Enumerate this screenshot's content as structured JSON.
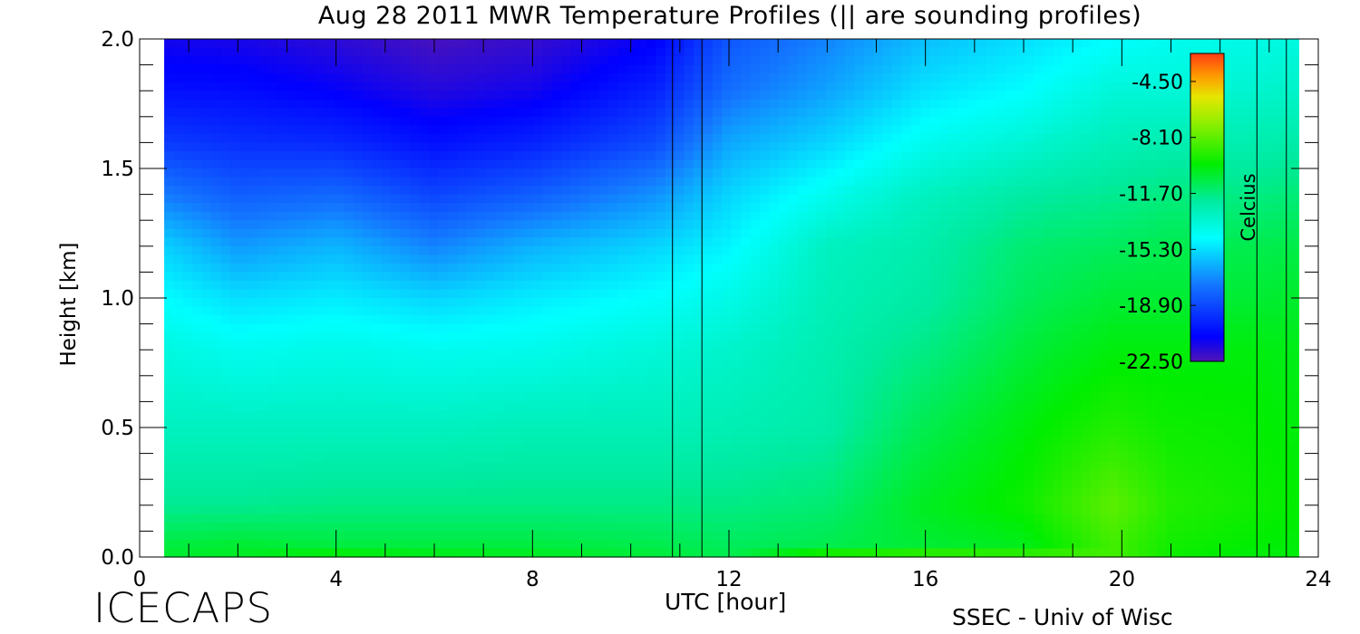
{
  "chart_data": {
    "type": "heatmap",
    "title": "Aug 28 2011 MWR Temperature Profiles (|| are sounding profiles)",
    "xlabel": "UTC [hour]",
    "ylabel": "Height [km]",
    "xlim": [
      0,
      24
    ],
    "ylim": [
      0,
      2
    ],
    "xticks": [
      "0",
      "4",
      "8",
      "12",
      "16",
      "20",
      "24"
    ],
    "yticks": [
      "0.0",
      "0.5",
      "1.0",
      "1.5",
      "2.0"
    ],
    "data_x_range": [
      0.5,
      23.6
    ],
    "sounding_times": [
      10.85,
      11.45,
      22.75,
      23.35
    ],
    "colorbar": {
      "unit": "Celcius",
      "range": [
        -22.5,
        -2.7
      ],
      "tick_labels": [
        "-4.50",
        "-8.10",
        "-11.70",
        "-15.30",
        "-18.90",
        "-22.50"
      ],
      "tick_values": [
        -4.5,
        -8.1,
        -11.7,
        -15.3,
        -18.9,
        -22.5
      ]
    },
    "temperature_profiles": {
      "heights_km": [
        0.0,
        0.05,
        0.2,
        0.5,
        0.8,
        1.0,
        1.2,
        1.4,
        1.6,
        1.8,
        2.0
      ],
      "times_hour": [
        0.5,
        2,
        4,
        6,
        8,
        10.5,
        12,
        14,
        16,
        18,
        19.8,
        21,
        22.5,
        23.6
      ],
      "values": [
        [
          -10.5,
          -10.8,
          -12.0,
          -13.0,
          -13.8,
          -14.6,
          -15.6,
          -17.5,
          -19.3,
          -20.5,
          -21.3
        ],
        [
          -10.3,
          -10.6,
          -12.0,
          -13.0,
          -14.2,
          -15.3,
          -16.8,
          -18.3,
          -19.6,
          -20.6,
          -21.4
        ],
        [
          -9.6,
          -10.8,
          -11.8,
          -13.0,
          -14.0,
          -15.0,
          -16.2,
          -18.0,
          -19.8,
          -21.0,
          -21.8
        ],
        [
          -10.0,
          -10.8,
          -11.8,
          -13.0,
          -14.2,
          -15.5,
          -17.3,
          -19.0,
          -20.5,
          -21.6,
          -22.3
        ],
        [
          -10.2,
          -10.8,
          -11.8,
          -12.8,
          -14.1,
          -15.0,
          -16.3,
          -18.3,
          -20.0,
          -21.3,
          -22.0
        ],
        [
          -10.6,
          -11.0,
          -11.8,
          -12.8,
          -13.6,
          -14.5,
          -15.5,
          -17.0,
          -18.8,
          -20.0,
          -21.0
        ],
        [
          -11.0,
          -11.2,
          -11.8,
          -12.7,
          -13.3,
          -14.0,
          -14.8,
          -15.5,
          -16.5,
          -17.8,
          -18.5
        ],
        [
          -8.8,
          -11.0,
          -11.5,
          -12.4,
          -12.6,
          -12.8,
          -13.0,
          -14.2,
          -15.5,
          -16.6,
          -17.3
        ],
        [
          -8.4,
          -10.6,
          -10.3,
          -11.0,
          -11.8,
          -12.3,
          -12.5,
          -13.0,
          -14.2,
          -15.2,
          -16.0
        ],
        [
          -8.6,
          -10.2,
          -9.6,
          -10.0,
          -10.7,
          -11.2,
          -11.5,
          -12.3,
          -13.5,
          -14.6,
          -15.3
        ],
        [
          -8.6,
          -8.6,
          -8.1,
          -9.2,
          -10.0,
          -10.6,
          -11.2,
          -12.0,
          -12.8,
          -13.6,
          -14.6
        ],
        [
          -9.6,
          -9.5,
          -9.2,
          -9.6,
          -10.0,
          -10.6,
          -11.0,
          -11.7,
          -12.6,
          -13.6,
          -14.2
        ],
        [
          -10.0,
          -9.8,
          -9.5,
          -9.7,
          -10.0,
          -10.6,
          -11.0,
          -11.8,
          -12.6,
          -13.4,
          -14.0
        ],
        [
          -10.0,
          -10.0,
          -9.8,
          -10.0,
          -10.2,
          -10.5,
          -10.9,
          -11.6,
          -12.4,
          -13.2,
          -13.8
        ]
      ]
    }
  },
  "footer": {
    "logo": "ICECAPS",
    "credit": "SSEC - Univ of Wisc"
  }
}
